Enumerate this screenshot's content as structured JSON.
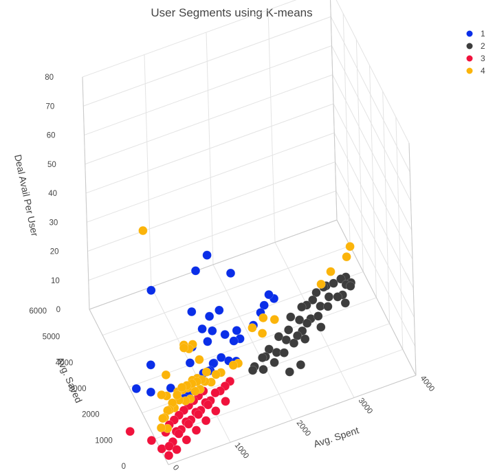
{
  "chart_data": {
    "type": "scatter",
    "scatter_3d": true,
    "title": "User Segments using K-means",
    "axes": {
      "x": {
        "label": "Avg. Spent",
        "range": [
          0,
          4000
        ],
        "ticks": [
          0,
          1000,
          2000,
          3000,
          4000
        ]
      },
      "y": {
        "label": "Avg. Saved",
        "range": [
          0,
          6000
        ],
        "ticks": [
          0,
          1000,
          2000,
          3000,
          4000,
          5000,
          6000
        ]
      },
      "z": {
        "label": "Deal Avail Per User",
        "range": [
          0,
          80
        ],
        "ticks": [
          0,
          10,
          20,
          30,
          40,
          50,
          60,
          70,
          80
        ]
      }
    },
    "legend": {
      "position": "top-right",
      "entries": [
        "1",
        "2",
        "3",
        "4"
      ]
    },
    "series": [
      {
        "name": "1",
        "color": "#0a2ee8",
        "points": [
          [
            1200,
            2600,
            10
          ],
          [
            1600,
            2500,
            8
          ],
          [
            1900,
            2400,
            12
          ],
          [
            1500,
            3100,
            14
          ],
          [
            1400,
            3400,
            10
          ],
          [
            1100,
            2500,
            16
          ],
          [
            1300,
            2700,
            12
          ],
          [
            1700,
            2500,
            8
          ],
          [
            1000,
            2800,
            20
          ],
          [
            300,
            2700,
            8
          ],
          [
            150,
            2000,
            6
          ],
          [
            -100,
            1900,
            10
          ],
          [
            500,
            3500,
            25
          ],
          [
            1800,
            3600,
            20
          ],
          [
            1450,
            3700,
            28
          ],
          [
            1300,
            3900,
            22
          ],
          [
            1600,
            3200,
            4
          ],
          [
            1750,
            3000,
            6
          ],
          [
            1250,
            2400,
            4
          ],
          [
            1350,
            2300,
            6
          ],
          [
            1450,
            2200,
            5
          ],
          [
            1550,
            2100,
            5
          ],
          [
            1150,
            2200,
            4
          ],
          [
            900,
            2000,
            5
          ],
          [
            800,
            1900,
            5
          ],
          [
            1000,
            2000,
            6
          ],
          [
            1100,
            2100,
            5
          ],
          [
            1200,
            2200,
            6
          ],
          [
            2200,
            3300,
            6
          ],
          [
            2400,
            3600,
            8
          ],
          [
            2300,
            3500,
            6
          ],
          [
            2500,
            3700,
            5
          ],
          [
            700,
            1700,
            4
          ],
          [
            600,
            1600,
            4
          ],
          [
            450,
            1900,
            6
          ],
          [
            850,
            2300,
            8
          ],
          [
            950,
            2600,
            10
          ]
        ]
      },
      {
        "name": "2",
        "color": "#3d3d3d",
        "points": [
          [
            1800,
            1900,
            3
          ],
          [
            2000,
            2000,
            4
          ],
          [
            2200,
            2100,
            3
          ],
          [
            2400,
            2300,
            4
          ],
          [
            2600,
            2400,
            3
          ],
          [
            2800,
            2600,
            4
          ],
          [
            3000,
            2700,
            4
          ],
          [
            3200,
            2900,
            4
          ],
          [
            3400,
            3100,
            4
          ],
          [
            3500,
            3200,
            3
          ],
          [
            3600,
            3400,
            4
          ],
          [
            3700,
            3500,
            3
          ],
          [
            3300,
            3300,
            3
          ],
          [
            3100,
            3000,
            4
          ],
          [
            2900,
            2800,
            3
          ],
          [
            2700,
            2500,
            3
          ],
          [
            2500,
            2200,
            3
          ],
          [
            2300,
            2000,
            3
          ],
          [
            2100,
            1800,
            3
          ],
          [
            1900,
            1700,
            3
          ],
          [
            2600,
            2900,
            5
          ],
          [
            2800,
            3000,
            6
          ],
          [
            3000,
            3100,
            6
          ],
          [
            3200,
            3200,
            8
          ],
          [
            3400,
            3400,
            6
          ],
          [
            3550,
            3550,
            5
          ],
          [
            3650,
            3650,
            4
          ],
          [
            3300,
            3500,
            5
          ],
          [
            3100,
            3300,
            6
          ],
          [
            2900,
            3100,
            5
          ],
          [
            2700,
            2700,
            5
          ],
          [
            2500,
            2600,
            4
          ],
          [
            2300,
            2400,
            5
          ],
          [
            2100,
            2200,
            4
          ],
          [
            1950,
            2000,
            4
          ],
          [
            1750,
            1800,
            3
          ],
          [
            2300,
            1600,
            0
          ],
          [
            2500,
            1700,
            0
          ],
          [
            2700,
            2300,
            2
          ],
          [
            3000,
            2500,
            2
          ],
          [
            3500,
            3000,
            2
          ],
          [
            3650,
            3300,
            4
          ]
        ]
      },
      {
        "name": "3",
        "color": "#f0123c",
        "points": [
          [
            100,
            400,
            2
          ],
          [
            200,
            600,
            1
          ],
          [
            300,
            800,
            2
          ],
          [
            400,
            900,
            1
          ],
          [
            500,
            1000,
            2
          ],
          [
            600,
            1100,
            1
          ],
          [
            700,
            1200,
            2
          ],
          [
            800,
            1300,
            1
          ],
          [
            900,
            1400,
            2
          ],
          [
            1000,
            1500,
            1
          ],
          [
            1100,
            1600,
            2
          ],
          [
            1200,
            1700,
            1
          ],
          [
            1300,
            1800,
            1
          ],
          [
            1400,
            1900,
            1
          ],
          [
            150,
            900,
            2
          ],
          [
            250,
            1100,
            2
          ],
          [
            350,
            1200,
            2
          ],
          [
            450,
            1300,
            2
          ],
          [
            550,
            1400,
            2
          ],
          [
            650,
            1500,
            2
          ],
          [
            750,
            1600,
            2
          ],
          [
            850,
            1700,
            2
          ],
          [
            950,
            1800,
            2
          ],
          [
            200,
            300,
            1
          ],
          [
            400,
            500,
            1
          ],
          [
            600,
            700,
            1
          ],
          [
            800,
            900,
            1
          ],
          [
            1000,
            1100,
            1
          ],
          [
            1200,
            1300,
            1
          ],
          [
            300,
            600,
            3
          ],
          [
            500,
            800,
            3
          ],
          [
            700,
            1000,
            3
          ],
          [
            900,
            1200,
            3
          ],
          [
            -100,
            800,
            2
          ],
          [
            -350,
            1250,
            3
          ],
          [
            0,
            500,
            1
          ],
          [
            50,
            200,
            1
          ]
        ]
      },
      {
        "name": "4",
        "color": "#fbb40a",
        "points": [
          [
            100,
            2000,
            62
          ],
          [
            700,
            2000,
            18
          ],
          [
            700,
            2000,
            17
          ],
          [
            800,
            2100,
            15
          ],
          [
            900,
            2300,
            14
          ],
          [
            1000,
            2300,
            8
          ],
          [
            400,
            2000,
            10
          ],
          [
            3900,
            4500,
            5
          ],
          [
            3800,
            4300,
            4
          ],
          [
            3500,
            4100,
            3
          ],
          [
            3300,
            3900,
            2
          ],
          [
            200,
            1400,
            10
          ],
          [
            300,
            1500,
            8
          ],
          [
            500,
            1600,
            7
          ],
          [
            600,
            1700,
            6
          ],
          [
            700,
            1800,
            5
          ],
          [
            800,
            1900,
            6
          ],
          [
            900,
            2000,
            5
          ],
          [
            200,
            1200,
            4
          ],
          [
            300,
            1300,
            5
          ],
          [
            400,
            1400,
            4
          ],
          [
            500,
            1500,
            5
          ],
          [
            600,
            1500,
            4
          ],
          [
            700,
            1600,
            3
          ],
          [
            800,
            1700,
            4
          ],
          [
            900,
            1800,
            3
          ],
          [
            1000,
            1900,
            4
          ],
          [
            1100,
            1900,
            3
          ],
          [
            1200,
            2000,
            4
          ],
          [
            1300,
            2100,
            3
          ],
          [
            100,
            1000,
            3
          ],
          [
            200,
            1000,
            2
          ],
          [
            150,
            1100,
            5
          ],
          [
            250,
            1200,
            6
          ],
          [
            350,
            1300,
            7
          ],
          [
            450,
            1400,
            8
          ],
          [
            550,
            1500,
            9
          ],
          [
            650,
            1600,
            8
          ],
          [
            750,
            1700,
            7
          ],
          [
            850,
            1800,
            6
          ],
          [
            950,
            1900,
            5
          ],
          [
            1050,
            2000,
            6
          ],
          [
            2000,
            3000,
            5
          ],
          [
            2200,
            3100,
            6
          ],
          [
            2100,
            2700,
            5
          ],
          [
            2400,
            3200,
            3
          ],
          [
            1500,
            2100,
            4
          ],
          [
            1600,
            2200,
            3
          ]
        ]
      }
    ]
  }
}
